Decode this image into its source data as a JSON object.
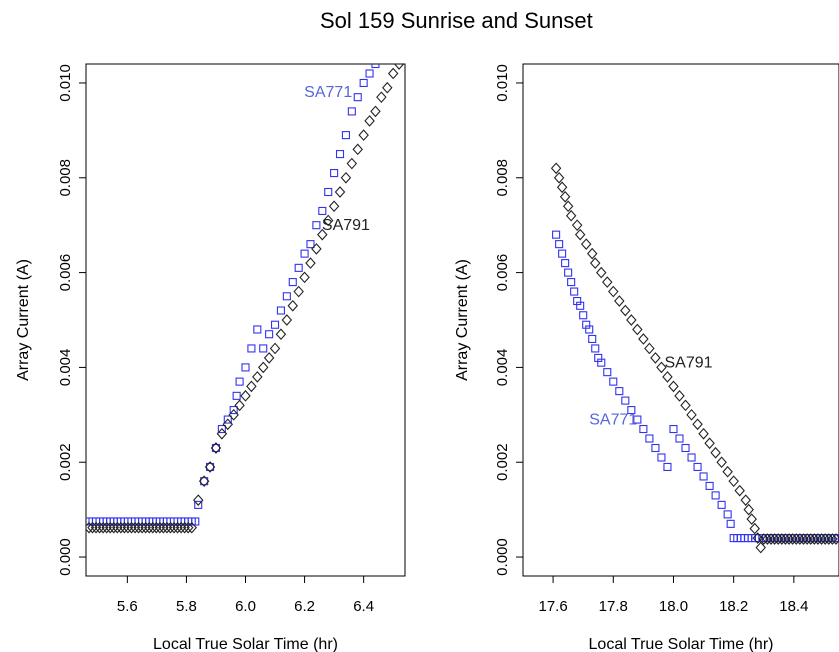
{
  "title": "Sol 159  Sunrise and Sunset",
  "colors": {
    "sa771": "#3333ee",
    "sa791": "#222222",
    "sa771_label": "#5566dd"
  },
  "chart_data": [
    {
      "type": "scatter",
      "panel": "sunrise",
      "xlabel": "Local True Solar Time (hr)",
      "ylabel": "Array Current (A)",
      "xlim": [
        5.46,
        6.54
      ],
      "ylim": [
        -0.0004,
        0.0104
      ],
      "xticks": [
        "5.6",
        "5.8",
        "6.0",
        "6.2",
        "6.4"
      ],
      "yticks": [
        "0.000",
        "0.002",
        "0.004",
        "0.006",
        "0.008",
        "0.010"
      ],
      "annotations": [
        {
          "text": "SA771",
          "series": "SA771",
          "x": 6.28,
          "y": 0.0097
        },
        {
          "text": "SA791",
          "series": "SA791",
          "x": 6.34,
          "y": 0.0069
        }
      ],
      "series": [
        {
          "name": "SA771",
          "marker": "square",
          "baseline": {
            "x_start": 5.47,
            "x_end": 5.83,
            "y": 0.00075
          },
          "points": [
            [
              5.84,
              0.0011
            ],
            [
              5.86,
              0.0016
            ],
            [
              5.88,
              0.0019
            ],
            [
              5.9,
              0.0023
            ],
            [
              5.92,
              0.0027
            ],
            [
              5.94,
              0.0029
            ],
            [
              5.96,
              0.0031
            ],
            [
              5.97,
              0.0034
            ],
            [
              5.98,
              0.0037
            ],
            [
              6.0,
              0.004
            ],
            [
              6.02,
              0.0044
            ],
            [
              6.04,
              0.0048
            ],
            [
              6.06,
              0.0044
            ],
            [
              6.08,
              0.0047
            ],
            [
              6.1,
              0.0049
            ],
            [
              6.12,
              0.0052
            ],
            [
              6.14,
              0.0055
            ],
            [
              6.16,
              0.0058
            ],
            [
              6.18,
              0.0061
            ],
            [
              6.2,
              0.0064
            ],
            [
              6.22,
              0.0066
            ],
            [
              6.24,
              0.007
            ],
            [
              6.26,
              0.0073
            ],
            [
              6.28,
              0.0077
            ],
            [
              6.3,
              0.0081
            ],
            [
              6.32,
              0.0085
            ],
            [
              6.34,
              0.0089
            ],
            [
              6.36,
              0.0094
            ],
            [
              6.38,
              0.0097
            ],
            [
              6.4,
              0.01
            ],
            [
              6.42,
              0.0102
            ],
            [
              6.44,
              0.0104
            ]
          ]
        },
        {
          "name": "SA791",
          "marker": "diamond",
          "baseline": {
            "x_start": 5.47,
            "x_end": 5.82,
            "y": 0.00062,
            "scatter_low": 0.0006
          },
          "points": [
            [
              5.84,
              0.0012
            ],
            [
              5.86,
              0.0016
            ],
            [
              5.88,
              0.0019
            ],
            [
              5.9,
              0.0023
            ],
            [
              5.92,
              0.0026
            ],
            [
              5.94,
              0.0028
            ],
            [
              5.96,
              0.003
            ],
            [
              5.98,
              0.0032
            ],
            [
              6.0,
              0.0034
            ],
            [
              6.02,
              0.0036
            ],
            [
              6.04,
              0.0038
            ],
            [
              6.06,
              0.004
            ],
            [
              6.08,
              0.0042
            ],
            [
              6.1,
              0.0044
            ],
            [
              6.12,
              0.0047
            ],
            [
              6.14,
              0.005
            ],
            [
              6.16,
              0.0053
            ],
            [
              6.18,
              0.0056
            ],
            [
              6.2,
              0.0059
            ],
            [
              6.22,
              0.0062
            ],
            [
              6.24,
              0.0065
            ],
            [
              6.26,
              0.0068
            ],
            [
              6.28,
              0.0071
            ],
            [
              6.3,
              0.0074
            ],
            [
              6.32,
              0.0077
            ],
            [
              6.34,
              0.008
            ],
            [
              6.36,
              0.0083
            ],
            [
              6.38,
              0.0086
            ],
            [
              6.4,
              0.0089
            ],
            [
              6.42,
              0.0092
            ],
            [
              6.44,
              0.0094
            ],
            [
              6.46,
              0.0097
            ],
            [
              6.48,
              0.0099
            ],
            [
              6.5,
              0.0102
            ],
            [
              6.52,
              0.0104
            ]
          ]
        }
      ]
    },
    {
      "type": "scatter",
      "panel": "sunset",
      "xlabel": "Local True Solar Time (hr)",
      "ylabel": "Array Current (A)",
      "xlim": [
        17.5,
        18.55
      ],
      "ylim": [
        -0.0004,
        0.0104
      ],
      "xticks": [
        "17.6",
        "17.8",
        "18.0",
        "18.2",
        "18.4"
      ],
      "yticks": [
        "0.000",
        "0.002",
        "0.004",
        "0.006",
        "0.008",
        "0.010"
      ],
      "annotations": [
        {
          "text": "SA791",
          "series": "SA791",
          "x": 18.05,
          "y": 0.004
        },
        {
          "text": "SA771",
          "series": "SA771",
          "x": 17.8,
          "y": 0.0028
        }
      ],
      "series": [
        {
          "name": "SA771",
          "marker": "square",
          "baseline": {
            "x_start": 18.2,
            "x_end": 18.55,
            "y": 0.0004
          },
          "points": [
            [
              17.61,
              0.0068
            ],
            [
              17.62,
              0.0066
            ],
            [
              17.63,
              0.0064
            ],
            [
              17.64,
              0.0062
            ],
            [
              17.65,
              0.006
            ],
            [
              17.66,
              0.0058
            ],
            [
              17.67,
              0.0056
            ],
            [
              17.68,
              0.0054
            ],
            [
              17.69,
              0.0053
            ],
            [
              17.7,
              0.0051
            ],
            [
              17.71,
              0.0049
            ],
            [
              17.72,
              0.0048
            ],
            [
              17.73,
              0.0046
            ],
            [
              17.74,
              0.0044
            ],
            [
              17.75,
              0.0042
            ],
            [
              17.76,
              0.0041
            ],
            [
              17.78,
              0.0039
            ],
            [
              17.8,
              0.0037
            ],
            [
              17.82,
              0.0035
            ],
            [
              17.84,
              0.0033
            ],
            [
              17.86,
              0.0031
            ],
            [
              17.88,
              0.0029
            ],
            [
              17.9,
              0.0027
            ],
            [
              17.92,
              0.0025
            ],
            [
              17.94,
              0.0023
            ],
            [
              17.96,
              0.0021
            ],
            [
              17.98,
              0.0019
            ],
            [
              18.0,
              0.0027
            ],
            [
              18.02,
              0.0025
            ],
            [
              18.04,
              0.0023
            ],
            [
              18.06,
              0.0021
            ],
            [
              18.08,
              0.0019
            ],
            [
              18.1,
              0.0017
            ],
            [
              18.12,
              0.0015
            ],
            [
              18.14,
              0.0013
            ],
            [
              18.16,
              0.0011
            ],
            [
              18.18,
              0.0009
            ],
            [
              18.19,
              0.0007
            ]
          ]
        },
        {
          "name": "SA791",
          "marker": "diamond",
          "baseline": {
            "x_start": 18.3,
            "x_end": 18.55,
            "y": 0.00038
          },
          "points": [
            [
              17.61,
              0.0082
            ],
            [
              17.62,
              0.008
            ],
            [
              17.63,
              0.0078
            ],
            [
              17.64,
              0.0076
            ],
            [
              17.65,
              0.0074
            ],
            [
              17.66,
              0.0072
            ],
            [
              17.68,
              0.007
            ],
            [
              17.69,
              0.0068
            ],
            [
              17.71,
              0.0066
            ],
            [
              17.73,
              0.0064
            ],
            [
              17.74,
              0.0062
            ],
            [
              17.76,
              0.006
            ],
            [
              17.78,
              0.0058
            ],
            [
              17.8,
              0.0056
            ],
            [
              17.82,
              0.0054
            ],
            [
              17.84,
              0.0052
            ],
            [
              17.86,
              0.005
            ],
            [
              17.88,
              0.0048
            ],
            [
              17.9,
              0.0046
            ],
            [
              17.92,
              0.0044
            ],
            [
              17.94,
              0.0042
            ],
            [
              17.96,
              0.004
            ],
            [
              17.98,
              0.0038
            ],
            [
              18.0,
              0.0036
            ],
            [
              18.02,
              0.0034
            ],
            [
              18.04,
              0.0032
            ],
            [
              18.06,
              0.003
            ],
            [
              18.08,
              0.0028
            ],
            [
              18.1,
              0.0026
            ],
            [
              18.12,
              0.0024
            ],
            [
              18.14,
              0.0022
            ],
            [
              18.16,
              0.002
            ],
            [
              18.18,
              0.0018
            ],
            [
              18.2,
              0.0016
            ],
            [
              18.22,
              0.0014
            ],
            [
              18.24,
              0.0012
            ],
            [
              18.25,
              0.001
            ],
            [
              18.26,
              0.0008
            ],
            [
              18.27,
              0.0006
            ],
            [
              18.28,
              0.0004
            ],
            [
              18.29,
              0.0002
            ]
          ]
        }
      ]
    }
  ]
}
